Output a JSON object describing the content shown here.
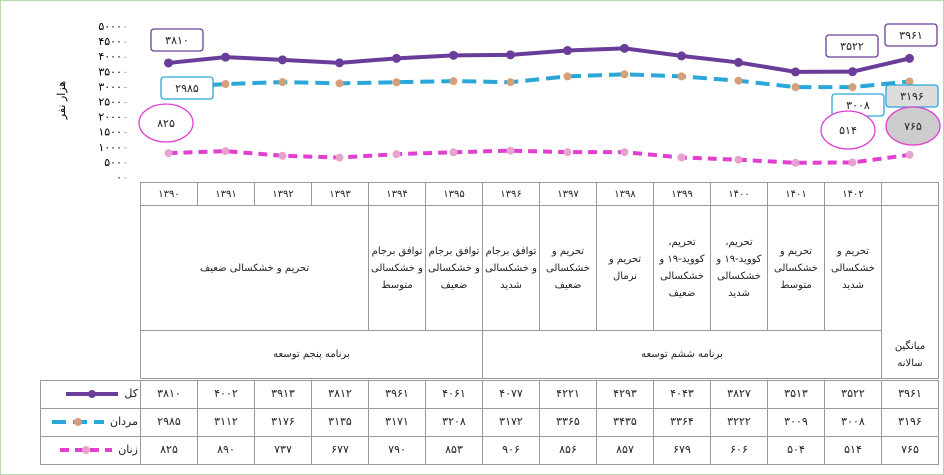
{
  "chart_data": {
    "type": "line",
    "y_label": "هزار نفر",
    "categories": [
      "۱۳۹۰",
      "۱۳۹۱",
      "۱۳۹۲",
      "۱۳۹۳",
      "۱۳۹۴",
      "۱۳۹۵",
      "۱۳۹۶",
      "۱۳۹۷",
      "۱۳۹۸",
      "۱۳۹۹",
      "۱۴۰۰",
      "۱۴۰۱",
      "۱۴۰۲",
      "میانگین سالانه"
    ],
    "ylim": [
      0,
      5000
    ],
    "yticks": [
      {
        "value": 0,
        "label": "۰"
      },
      {
        "value": 500,
        "label": "۵۰۰"
      },
      {
        "value": 1000,
        "label": "۱۰۰۰"
      },
      {
        "value": 1500,
        "label": "۱۵۰۰"
      },
      {
        "value": 2000,
        "label": "۲۰۰۰"
      },
      {
        "value": 2500,
        "label": "۲۵۰۰"
      },
      {
        "value": 3000,
        "label": "۳۰۰۰"
      },
      {
        "value": 3500,
        "label": "۳۵۰۰"
      },
      {
        "value": 4000,
        "label": "۴۰۰۰"
      },
      {
        "value": 4500,
        "label": "۴۵۰۰"
      },
      {
        "value": 5000,
        "label": "۵۰۰۰"
      }
    ],
    "series": [
      {
        "name": "کل",
        "color": "#6a3d9a",
        "values": [
          3810,
          4002,
          3913,
          3812,
          3961,
          4061,
          4077,
          4221,
          4293,
          4043,
          3827,
          3513,
          3522,
          3961
        ],
        "value_labels": [
          "۳۸۱۰",
          "۴۰۰۲",
          "۳۹۱۳",
          "۳۸۱۲",
          "۳۹۶۱",
          "۴۰۶۱",
          "۴۰۷۷",
          "۴۲۲۱",
          "۴۲۹۳",
          "۴۰۴۳",
          "۳۸۲۷",
          "۳۵۱۳",
          "۳۵۲۲",
          "۳۹۶۱"
        ]
      },
      {
        "name": "مردان",
        "color": "#2aa7d8",
        "values": [
          2985,
          3112,
          3176,
          3135,
          3171,
          3208,
          3172,
          3365,
          3435,
          3364,
          3222,
          3009,
          3008,
          3196
        ],
        "value_labels": [
          "۲۹۸۵",
          "۳۱۱۲",
          "۳۱۷۶",
          "۳۱۳۵",
          "۳۱۷۱",
          "۳۲۰۸",
          "۳۱۷۲",
          "۳۳۶۵",
          "۳۴۳۵",
          "۳۳۶۴",
          "۳۲۲۲",
          "۳۰۰۹",
          "۳۰۰۸",
          "۳۱۹۶"
        ]
      },
      {
        "name": "زنان",
        "color": "#e03fcf",
        "values": [
          825,
          890,
          737,
          677,
          790,
          853,
          906,
          856,
          857,
          679,
          606,
          504,
          514,
          765
        ],
        "value_labels": [
          "۸۲۵",
          "۸۹۰",
          "۷۳۷",
          "۶۷۷",
          "۷۹۰",
          "۸۵۳",
          "۹۰۶",
          "۸۵۶",
          "۸۵۷",
          "۶۷۹",
          "۶۰۶",
          "۵۰۴",
          "۵۱۴",
          "۷۶۵"
        ]
      }
    ],
    "conditions": [
      "تحریم و خشکسالی ضعیف",
      "توافق برجام و خشکسالی متوسط",
      "توافق برجام و خشکسالی ضعیف",
      "توافق برجام و خشکسالی شدید",
      "تحریم و خشکسالی ضعیف",
      "تحریم و نرمال",
      "تحریم، کووید-۱۹ و خشکسالی ضعیف",
      "تحریم، کووید-۱۹ و خشکسالی شدید",
      "تحریم و خشکسالی متوسط",
      "تحریم و خشکسالی شدید"
    ],
    "programs": [
      "برنامه پنجم توسعه",
      "برنامه ششم توسعه"
    ]
  }
}
